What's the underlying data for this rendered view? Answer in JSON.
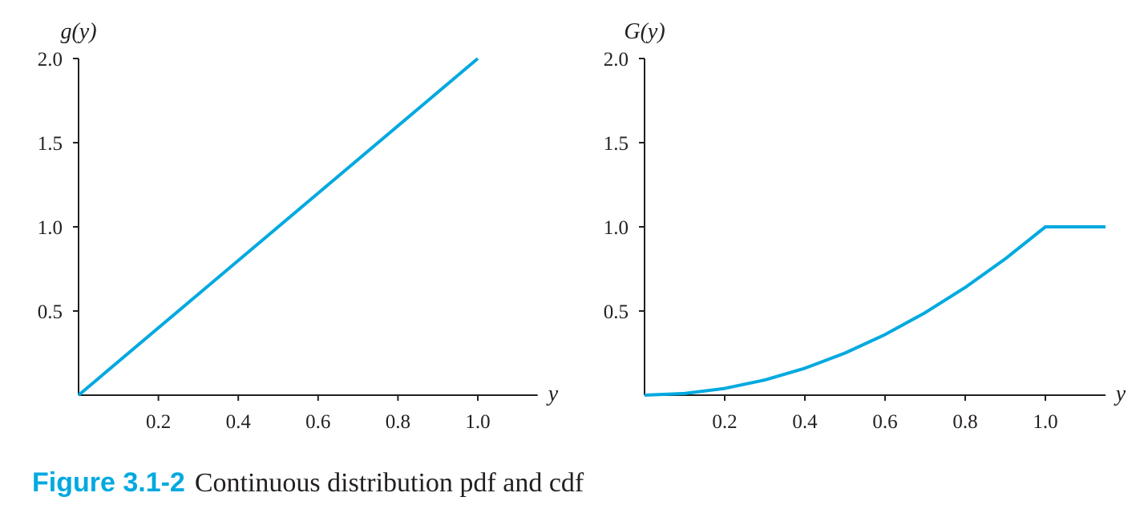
{
  "figure": {
    "number": "Figure 3.1-2",
    "caption": "Continuous distribution pdf and cdf"
  },
  "colors": {
    "curve": "#00a9e0",
    "axes": "#231f20",
    "caption_number": "#00a9e0"
  },
  "chart_data": [
    {
      "type": "line",
      "title": "",
      "xlabel": "y",
      "ylabel": "g(y)",
      "xlim": [
        0,
        1.15
      ],
      "ylim": [
        0,
        2.0
      ],
      "xticks": [
        0.2,
        0.4,
        0.6,
        0.8,
        1.0
      ],
      "xtick_labels": [
        "0.2",
        "0.4",
        "0.6",
        "0.8",
        "1.0"
      ],
      "yticks": [
        0.5,
        1.0,
        1.5,
        2.0
      ],
      "ytick_labels": [
        "0.5",
        "1.0",
        "1.5",
        "2.0"
      ],
      "series": [
        {
          "name": "g(y)",
          "x": [
            0,
            1.0
          ],
          "y": [
            0,
            2.0
          ]
        }
      ]
    },
    {
      "type": "line",
      "title": "",
      "xlabel": "y",
      "ylabel": "G(y)",
      "xlim": [
        0,
        1.15
      ],
      "ylim": [
        0,
        2.0
      ],
      "xticks": [
        0.2,
        0.4,
        0.6,
        0.8,
        1.0
      ],
      "xtick_labels": [
        "0.2",
        "0.4",
        "0.6",
        "0.8",
        "1.0"
      ],
      "yticks": [
        0.5,
        1.0,
        1.5,
        2.0
      ],
      "ytick_labels": [
        "0.5",
        "1.0",
        "1.5",
        "2.0"
      ],
      "series": [
        {
          "name": "G(y)",
          "x": [
            0,
            0.1,
            0.2,
            0.3,
            0.4,
            0.5,
            0.6,
            0.7,
            0.8,
            0.9,
            1.0,
            1.15
          ],
          "y": [
            0,
            0.01,
            0.04,
            0.09,
            0.16,
            0.25,
            0.36,
            0.49,
            0.64,
            0.81,
            1.0,
            1.0
          ]
        }
      ]
    }
  ]
}
